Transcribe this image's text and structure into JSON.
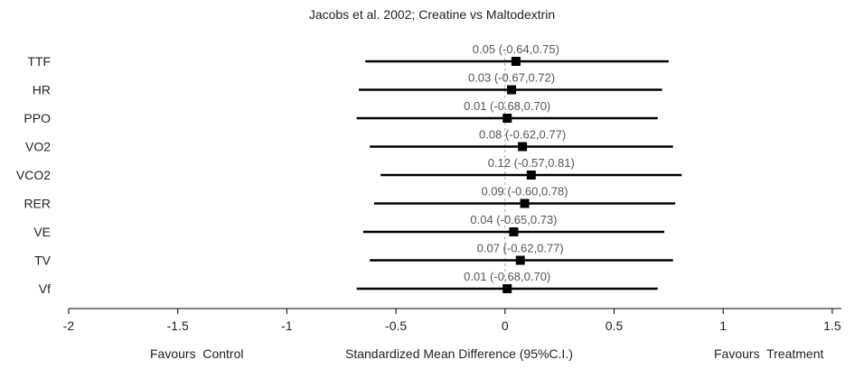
{
  "title": "Jacobs et al. 2002; Creatine vs Maltodextrin",
  "footer": {
    "left": "Favours  Control",
    "center": "Standardized Mean Difference (95%C.I.)",
    "right": "Favours  Treatment"
  },
  "colors": {
    "marker": "#000000",
    "ci_line": "#000000",
    "label": "#555555",
    "axis": "#000000",
    "zero_line": "#a6a6a6"
  },
  "chart_data": {
    "type": "forest",
    "title": "Jacobs et al. 2002; Creatine vs Maltodextrin",
    "xlabel": "Standardized Mean Difference (95%C.I.)",
    "xlim": [
      -2,
      1.5
    ],
    "xticks": [
      -2,
      -1.5,
      -1,
      -0.5,
      0,
      0.5,
      1,
      1.5
    ],
    "xtick_labels": [
      "-2",
      "-1.5",
      "-1",
      "-0.5",
      "0",
      "0.5",
      "1",
      "1.5"
    ],
    "grid": false,
    "rows": [
      {
        "label": "TTF",
        "estimate": 0.05,
        "lower": -0.64,
        "upper": 0.75,
        "text": "0.05 (-0.64,0.75)"
      },
      {
        "label": "HR",
        "estimate": 0.03,
        "lower": -0.67,
        "upper": 0.72,
        "text": "0.03 (-0.67,0.72)"
      },
      {
        "label": "PPO",
        "estimate": 0.01,
        "lower": -0.68,
        "upper": 0.7,
        "text": "0.01 (-0.68,0.70)"
      },
      {
        "label": "VO2",
        "estimate": 0.08,
        "lower": -0.62,
        "upper": 0.77,
        "text": "0.08 (-0.62,0.77)"
      },
      {
        "label": "VCO2",
        "estimate": 0.12,
        "lower": -0.57,
        "upper": 0.81,
        "text": "0.12 (-0.57,0.81)"
      },
      {
        "label": "RER",
        "estimate": 0.09,
        "lower": -0.6,
        "upper": 0.78,
        "text": "0.09 (-0.60,0.78)"
      },
      {
        "label": "VE",
        "estimate": 0.04,
        "lower": -0.65,
        "upper": 0.73,
        "text": "0.04 (-0.65,0.73)"
      },
      {
        "label": "TV",
        "estimate": 0.07,
        "lower": -0.62,
        "upper": 0.77,
        "text": "0.07 (-0.62,0.77)"
      },
      {
        "label": "Vf",
        "estimate": 0.01,
        "lower": -0.68,
        "upper": 0.7,
        "text": "0.01 (-0.68,0.70)"
      }
    ]
  }
}
